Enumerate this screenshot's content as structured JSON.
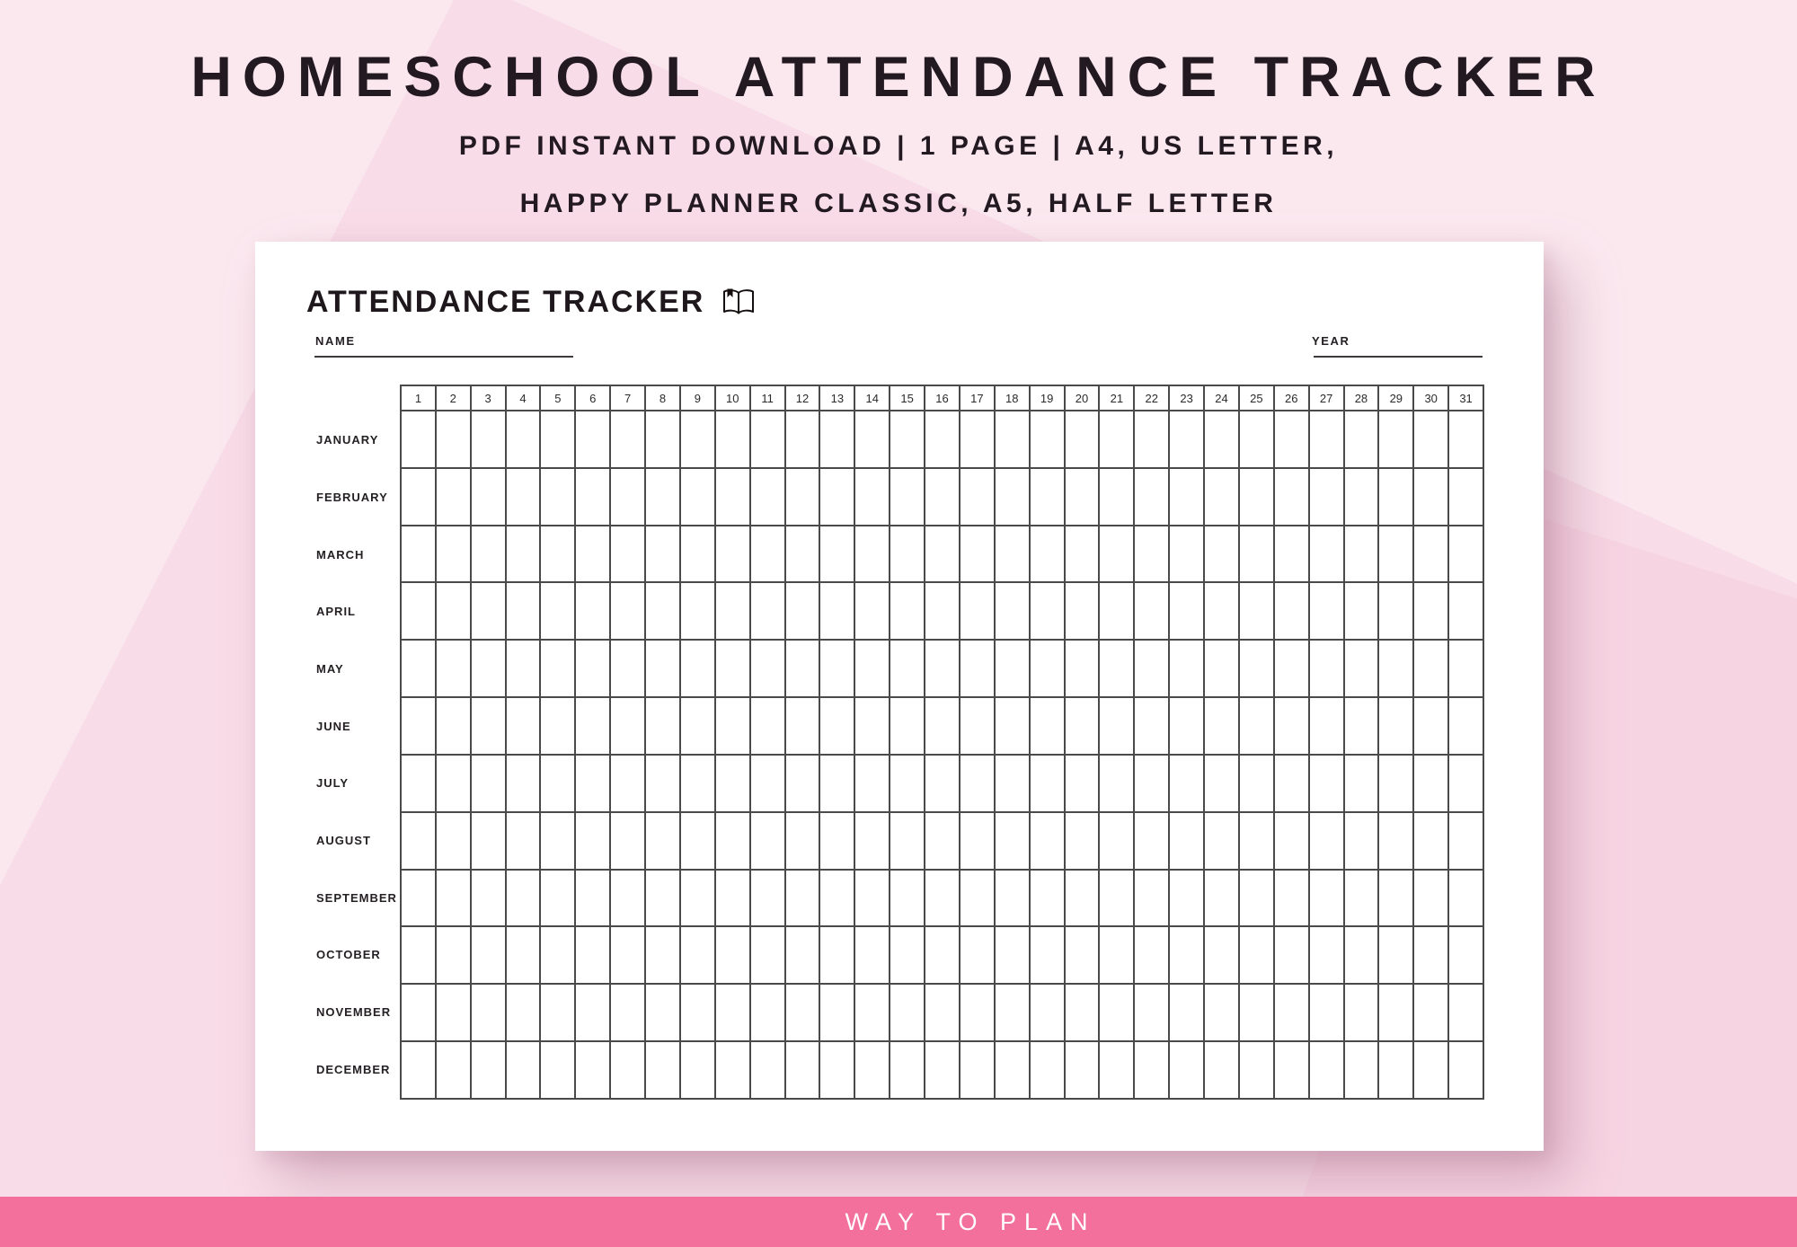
{
  "header": {
    "title": "HOMESCHOOL ATTENDANCE TRACKER",
    "subtitle_line1": "PDF INSTANT DOWNLOAD | 1 PAGE | A4, US LETTER,",
    "subtitle_line2": "HAPPY PLANNER CLASSIC, A5, HALF LETTER"
  },
  "card": {
    "title": "ATTENDANCE TRACKER",
    "title_icon": "open-book-icon",
    "name_label": "NAME",
    "year_label": "YEAR",
    "name_value": "",
    "year_value": "",
    "grid": {
      "day_numbers": [
        "1",
        "2",
        "3",
        "4",
        "5",
        "6",
        "7",
        "8",
        "9",
        "10",
        "11",
        "12",
        "13",
        "14",
        "15",
        "16",
        "17",
        "18",
        "19",
        "20",
        "21",
        "22",
        "23",
        "24",
        "25",
        "26",
        "27",
        "28",
        "29",
        "30",
        "31"
      ],
      "months": [
        "JANUARY",
        "FEBRUARY",
        "MARCH",
        "APRIL",
        "MAY",
        "JUNE",
        "JULY",
        "AUGUST",
        "SEPTEMBER",
        "OCTOBER",
        "NOVEMBER",
        "DECEMBER"
      ]
    }
  },
  "footer": {
    "brand": "WAY TO PLAN"
  },
  "colors": {
    "bg_light": "#FBE8EF",
    "bg_band": "#F8DCE7",
    "bg_corner": "#F7D4E2",
    "card_bg": "#FFFFFF",
    "grid_line": "#4A4A4A",
    "text_dark": "#231A21",
    "footer_pink": "#F3709D"
  }
}
